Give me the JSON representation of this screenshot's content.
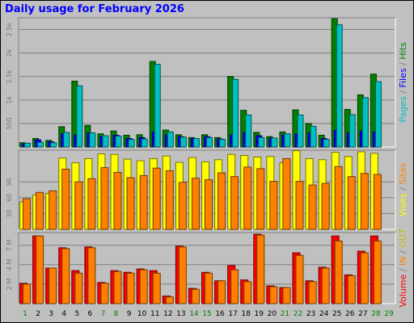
{
  "title": "Daily usage for February 2026",
  "chart_data": {
    "type": "bar",
    "title": "Daily usage for February 2026",
    "days": [
      "1",
      "2",
      "3",
      "4",
      "5",
      "6",
      "7",
      "8",
      "9",
      "10",
      "11",
      "12",
      "13",
      "14",
      "15",
      "16",
      "17",
      "18",
      "19",
      "20",
      "21",
      "22",
      "23",
      "24",
      "25",
      "26",
      "27",
      "28",
      "29"
    ],
    "weekend_days": [
      "1",
      "7",
      "8",
      "14",
      "15",
      "21",
      "22",
      "28",
      "29"
    ],
    "colors": {
      "pages": "#00c0c0",
      "files": "#0000ff",
      "hits": "#008000",
      "visits": "#ffff00",
      "sites": "#ff8000",
      "in": "#ff8000",
      "out": "#c0c000",
      "volume": "#ff0000",
      "weekday_label": "#000000",
      "weekend_label": "#008000"
    },
    "panels": [
      {
        "id": "hits",
        "y_ticks": [
          "500",
          "1k",
          "1.5k",
          "2k",
          "2.5k"
        ],
        "y_tick_values": [
          500,
          1000,
          1500,
          2000,
          2500
        ],
        "ylim": [
          0,
          2750
        ],
        "legend": [
          {
            "text": "Pages",
            "color": "#00c0c0"
          },
          {
            "text": " / ",
            "color": "#808080"
          },
          {
            "text": "Files",
            "color": "#0000ff"
          },
          {
            "text": " / ",
            "color": "#808080"
          },
          {
            "text": "Hits",
            "color": "#008000"
          }
        ],
        "series": [
          {
            "name": "Hits",
            "color": "#008000",
            "values": [
              90,
              180,
              140,
              430,
              1400,
              460,
              280,
              340,
              250,
              260,
              1820,
              360,
              260,
              200,
              260,
              200,
              1500,
              780,
              310,
              220,
              320,
              790,
              500,
              250,
              2730,
              800,
              1110,
              1550,
              0
            ]
          },
          {
            "name": "Files",
            "color": "#0000ff",
            "values": [
              70,
              150,
              110,
              280,
              260,
              300,
              220,
              250,
              180,
              200,
              320,
              260,
              220,
              180,
              220,
              170,
              260,
              310,
              240,
              190,
              260,
              280,
              300,
              180,
              350,
              300,
              340,
              320,
              0
            ]
          },
          {
            "name": "Pages",
            "color": "#00c0c0",
            "values": [
              80,
              100,
              90,
              310,
              1300,
              300,
              240,
              230,
              160,
              170,
              1760,
              320,
              210,
              180,
              200,
              160,
              1440,
              680,
              200,
              190,
              280,
              680,
              440,
              160,
              2600,
              690,
              1050,
              1390,
              0
            ]
          }
        ]
      },
      {
        "id": "visits",
        "y_ticks": [
          "30",
          "60",
          "90"
        ],
        "y_tick_values": [
          30,
          60,
          90
        ],
        "ylim": [
          0,
          150
        ],
        "legend": [
          {
            "text": "Visits",
            "color": "#ffff00"
          },
          {
            "text": " / ",
            "color": "#808080"
          },
          {
            "text": "Sites",
            "color": "#ff8000"
          }
        ],
        "series": [
          {
            "name": "Visits",
            "color": "#ffff00",
            "values": [
              52,
              65,
              68,
              135,
              126,
              134,
              143,
              142,
              133,
              130,
              134,
              139,
              127,
              136,
              128,
              132,
              142,
              140,
              137,
              138,
              126,
              149,
              134,
              132,
              146,
              138,
              147,
              144,
              0
            ]
          },
          {
            "name": "Sites",
            "color": "#ff8000",
            "values": [
              58,
              70,
              73,
              114,
              90,
              96,
              117,
              108,
              98,
              102,
              116,
              111,
              89,
              97,
              94,
              107,
              100,
              118,
              115,
              91,
              134,
              91,
              84,
              87,
              119,
              100,
              106,
              104,
              0
            ]
          }
        ]
      },
      {
        "id": "volume",
        "y_ticks": [
          "2 M",
          "4 M",
          "7 M"
        ],
        "y_tick_values": [
          2.3,
          4.6,
          6.9
        ],
        "ylim": [
          0,
          8.4
        ],
        "legend": [
          {
            "text": "Volume",
            "color": "#ff0000"
          },
          {
            "text": " / ",
            "color": "#808080"
          },
          {
            "text": "IN",
            "color": "#ff8000"
          },
          {
            "text": " / ",
            "color": "#808080"
          },
          {
            "text": "OUT",
            "color": "#c0c000"
          }
        ],
        "series": [
          {
            "name": "Volume",
            "color": "#ff0000",
            "values": [
              2.4,
              8.0,
              4.2,
              6.6,
              3.9,
              6.7,
              2.5,
              3.9,
              3.7,
              4.1,
              3.9,
              0.9,
              6.8,
              1.8,
              3.7,
              2.7,
              4.5,
              2.8,
              8.2,
              2.1,
              1.9,
              6.0,
              2.7,
              4.3,
              8.0,
              3.4,
              6.2,
              8.0,
              0
            ]
          },
          {
            "name": "IN",
            "color": "#ff8000",
            "values": [
              2.3,
              8.0,
              4.2,
              6.5,
              3.6,
              6.6,
              2.4,
              3.8,
              3.6,
              4.0,
              3.6,
              0.8,
              6.7,
              1.7,
              3.6,
              2.7,
              4.0,
              2.6,
              8.1,
              2.0,
              1.9,
              5.7,
              2.6,
              4.2,
              7.4,
              3.3,
              6.0,
              7.4,
              0
            ]
          }
        ]
      }
    ]
  }
}
